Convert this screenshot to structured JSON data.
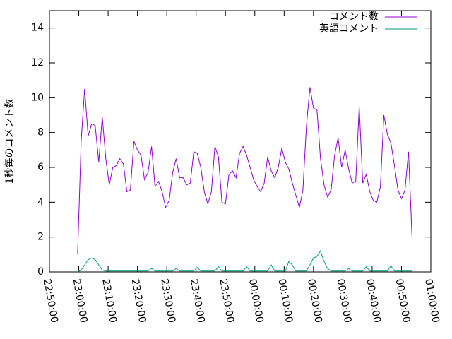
{
  "chart_data": {
    "type": "line",
    "ylabel": "1秒毎のコメント数",
    "x": [
      "22:59:36",
      "23:00:48",
      "23:02:00",
      "23:03:12",
      "23:04:24",
      "23:05:36",
      "23:06:48",
      "23:08:00",
      "23:09:12",
      "23:10:24",
      "23:11:36",
      "23:12:48",
      "23:14:00",
      "23:15:12",
      "23:16:24",
      "23:17:36",
      "23:18:48",
      "23:20:00",
      "23:21:12",
      "23:22:24",
      "23:23:36",
      "23:24:48",
      "23:26:00",
      "23:27:12",
      "23:28:24",
      "23:29:36",
      "23:30:48",
      "23:32:00",
      "23:33:12",
      "23:34:24",
      "23:35:36",
      "23:36:48",
      "23:38:00",
      "23:39:12",
      "23:40:24",
      "23:41:36",
      "23:42:48",
      "23:44:00",
      "23:45:12",
      "23:46:24",
      "23:47:36",
      "23:48:48",
      "23:50:00",
      "23:51:12",
      "23:52:24",
      "23:53:36",
      "23:54:48",
      "23:56:00",
      "23:57:12",
      "23:58:24",
      "23:59:36",
      "00:00:48",
      "00:02:00",
      "00:03:12",
      "00:04:24",
      "00:05:36",
      "00:06:48",
      "00:08:00",
      "00:09:12",
      "00:10:24",
      "00:11:36",
      "00:12:48",
      "00:14:00",
      "00:15:12",
      "00:16:24",
      "00:17:36",
      "00:18:48",
      "00:20:00",
      "00:21:12",
      "00:22:24",
      "00:23:36",
      "00:24:48",
      "00:26:00",
      "00:27:12",
      "00:28:24",
      "00:29:36",
      "00:30:48",
      "00:32:00",
      "00:33:12",
      "00:34:24",
      "00:35:36",
      "00:36:48",
      "00:38:00",
      "00:39:12",
      "00:40:24",
      "00:41:36",
      "00:42:48",
      "00:44:00",
      "00:45:12",
      "00:46:24",
      "00:47:36",
      "00:48:48",
      "00:50:00",
      "00:51:12",
      "00:52:24",
      "00:53:36"
    ],
    "series": [
      {
        "name": "コメント数",
        "color": "#9400d3",
        "values": [
          1.0,
          7.5,
          10.5,
          7.8,
          8.5,
          8.4,
          6.3,
          8.9,
          6.5,
          5.0,
          6.0,
          6.1,
          6.5,
          6.2,
          4.6,
          4.7,
          7.5,
          7.0,
          6.7,
          5.3,
          5.7,
          7.2,
          4.9,
          5.2,
          4.6,
          3.7,
          4.1,
          5.7,
          6.5,
          5.4,
          5.4,
          5.0,
          5.1,
          6.9,
          6.8,
          6.0,
          4.6,
          3.9,
          4.6,
          7.2,
          6.6,
          4.0,
          3.9,
          5.6,
          5.8,
          5.4,
          6.8,
          7.2,
          6.7,
          6.0,
          5.3,
          4.9,
          4.6,
          5.1,
          6.6,
          5.8,
          5.4,
          6.0,
          7.1,
          6.3,
          5.9,
          5.1,
          4.4,
          3.7,
          4.7,
          8.4,
          10.6,
          9.4,
          9.3,
          6.5,
          5.0,
          4.3,
          4.7,
          6.7,
          7.7,
          6.0,
          7.0,
          5.9,
          5.1,
          5.2,
          9.5,
          5.1,
          5.6,
          4.6,
          4.1,
          4.0,
          4.9,
          9.0,
          7.9,
          7.4,
          6.1,
          4.7,
          4.2,
          4.7,
          6.9,
          2.0
        ]
      },
      {
        "name": "英語コメント",
        "color": "#009e73",
        "values": [
          0,
          0.1,
          0.4,
          0.7,
          0.8,
          0.7,
          0.4,
          0.1,
          0.05,
          0.05,
          0.05,
          0.05,
          0.05,
          0.05,
          0.05,
          0.05,
          0.05,
          0.05,
          0.05,
          0.05,
          0.05,
          0.2,
          0.05,
          0.05,
          0.05,
          0.05,
          0.05,
          0.05,
          0.2,
          0.05,
          0.05,
          0.05,
          0.05,
          0.05,
          0.25,
          0.05,
          0.05,
          0.05,
          0.05,
          0.05,
          0.3,
          0.05,
          0.05,
          0.05,
          0.05,
          0.05,
          0.05,
          0.05,
          0.3,
          0.05,
          0.05,
          0.05,
          0.05,
          0.05,
          0.05,
          0.4,
          0.05,
          0.05,
          0.05,
          0.05,
          0.6,
          0.4,
          0.05,
          0.05,
          0.05,
          0.05,
          0.4,
          0.8,
          0.9,
          1.2,
          0.6,
          0.2,
          0.05,
          0.05,
          0.05,
          0.05,
          0.05,
          0.2,
          0.05,
          0.05,
          0.05,
          0.05,
          0.3,
          0.05,
          0.05,
          0.05,
          0.05,
          0.05,
          0.05,
          0.35,
          0.05,
          0.05,
          0.05,
          0.05,
          0.05,
          0.05
        ]
      }
    ],
    "xlim": [
      "22:50:00",
      "01:00:00"
    ],
    "xticks": [
      "22:50:00",
      "23:00:00",
      "23:10:00",
      "23:20:00",
      "23:30:00",
      "23:40:00",
      "23:50:00",
      "00:00:00",
      "00:10:00",
      "00:20:00",
      "00:30:00",
      "00:40:00",
      "00:50:00",
      "01:00:00"
    ],
    "ylim": [
      0,
      15
    ],
    "yticks": [
      0,
      2,
      4,
      6,
      8,
      10,
      12,
      14
    ],
    "legend": "top-right"
  }
}
